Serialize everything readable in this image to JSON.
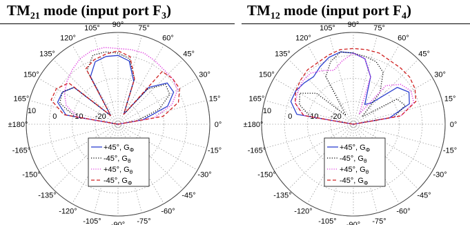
{
  "panels": [
    {
      "title_main": "TM",
      "title_sub": "21",
      "title_rest": " mode (input port F",
      "title_port": "3",
      "title_end": ")"
    },
    {
      "title_main": "TM",
      "title_sub": "12",
      "title_rest": " mode (input port F",
      "title_port": "4",
      "title_end": ")"
    }
  ],
  "chart_data": [
    {
      "type": "polar-line",
      "title": "TM21 mode (input port F3)",
      "angle_labels": [
        "105°",
        "90°",
        "75°",
        "120°",
        "60°",
        "135°",
        "45°",
        "150°",
        "30°",
        "165°",
        "15°",
        "±180°",
        "0°",
        "-165°",
        "-15°",
        "-150°",
        "-30°",
        "-135°",
        "-45°",
        "-120°",
        "-60°",
        "-105°",
        "-90°",
        "-75°"
      ],
      "radial_labels": [
        "10",
        "0",
        "-10",
        "-20"
      ],
      "r_range": [
        -30,
        10
      ],
      "legend": [
        "+45°, GΦ",
        "-45°, Gθ",
        "+45°, Gθ",
        "-45°, GΦ"
      ],
      "series": [
        {
          "name": "+45°, GΦ",
          "color": "#2b3fcf",
          "style": "solid",
          "theta": [
            0,
            10,
            20,
            30,
            40,
            50,
            60,
            70,
            80,
            90,
            100,
            110,
            120,
            130,
            140,
            150,
            160,
            170,
            180
          ],
          "r": [
            -30,
            -19,
            -7,
            -2,
            -2,
            -9,
            -25,
            -10,
            -2,
            0,
            0,
            -1,
            -6,
            -25,
            -5,
            -2,
            -2,
            -7,
            -30
          ]
        },
        {
          "name": "-45°, Gθ",
          "color": "#000000",
          "style": "dot-dash",
          "theta": [
            0,
            10,
            20,
            30,
            40,
            50,
            60,
            70,
            80,
            90,
            100,
            110,
            120,
            130,
            140,
            150,
            160,
            170,
            180
          ],
          "r": [
            -30,
            -22,
            -11,
            -4,
            -3,
            -10,
            -25,
            -9,
            -1,
            1,
            2,
            2,
            -3,
            -25,
            -5,
            -2,
            -3,
            -11,
            -30
          ]
        },
        {
          "name": "+45°, Gθ",
          "color": "#e040e0",
          "style": "dotted",
          "theta": [
            0,
            10,
            20,
            30,
            40,
            50,
            60,
            70,
            80,
            90,
            100,
            110,
            120,
            130,
            140,
            150,
            160,
            170,
            180
          ],
          "r": [
            -30,
            -14,
            -5,
            0,
            1,
            1,
            2,
            3,
            3,
            3,
            4,
            4,
            3,
            1,
            -1,
            -3,
            -6,
            -12,
            -30
          ]
        },
        {
          "name": "-45°, GΦ",
          "color": "#d02020",
          "style": "dashed",
          "theta": [
            0,
            10,
            20,
            30,
            40,
            50,
            60,
            70,
            80,
            90,
            100,
            110,
            120,
            130,
            140,
            150,
            160,
            170,
            180
          ],
          "r": [
            -30,
            -10,
            -2,
            1,
            1,
            0,
            -25,
            -9,
            0,
            2,
            1,
            0,
            -2,
            -25,
            -2,
            1,
            1,
            -6,
            -30
          ]
        }
      ]
    },
    {
      "type": "polar-line",
      "title": "TM12 mode (input port F4)",
      "angle_labels": [
        "105°",
        "90°",
        "75°",
        "120°",
        "60°",
        "135°",
        "45°",
        "150°",
        "30°",
        "165°",
        "15°",
        "±180°",
        "0°",
        "-165°",
        "-15°",
        "-150°",
        "-30°",
        "-135°",
        "-45°",
        "-120°",
        "-60°",
        "-105°",
        "-90°",
        "-75°"
      ],
      "radial_labels": [
        "10",
        "0",
        "-10",
        "-20"
      ],
      "r_range": [
        -30,
        10
      ],
      "legend": [
        "+45°, GΦ",
        "-45°, Gθ",
        "+45°, Gθ",
        "-45°, GΦ"
      ],
      "series": [
        {
          "name": "+45°, GΦ",
          "color": "#2b3fcf",
          "style": "solid",
          "theta": [
            0,
            10,
            20,
            30,
            40,
            50,
            60,
            70,
            80,
            90,
            100,
            110,
            120,
            130,
            140,
            150,
            160,
            170,
            180
          ],
          "r": [
            -30,
            -14,
            -4,
            -2,
            -5,
            -18,
            -20,
            -8,
            -1,
            1,
            2,
            1,
            -1,
            -3,
            -2,
            -1,
            -1,
            -5,
            -30
          ]
        },
        {
          "name": "-45°, Gθ",
          "color": "#000000",
          "style": "dot-dash",
          "theta": [
            0,
            10,
            20,
            30,
            40,
            50,
            60,
            70,
            80,
            90,
            100,
            110,
            120,
            130,
            140,
            150,
            160,
            170,
            180
          ],
          "r": [
            -30,
            -12,
            -6,
            -8,
            -25,
            -12,
            -4,
            -1,
            0,
            1,
            2,
            -1,
            -6,
            -25,
            -9,
            -3,
            -5,
            -11,
            -30
          ]
        },
        {
          "name": "+45°, Gθ",
          "color": "#e040e0",
          "style": "dotted",
          "theta": [
            0,
            10,
            20,
            30,
            40,
            50,
            60,
            70,
            80,
            90,
            100,
            110,
            120,
            130,
            140,
            150,
            160,
            170,
            180
          ],
          "r": [
            -30,
            -9,
            -2,
            -1,
            -3,
            -8,
            -25,
            -8,
            -1,
            1,
            -2,
            -5,
            -3,
            -1,
            -1,
            -2,
            -3,
            -8,
            -30
          ]
        },
        {
          "name": "-45°, GΦ",
          "color": "#d02020",
          "style": "dashed",
          "theta": [
            0,
            10,
            20,
            30,
            40,
            50,
            60,
            70,
            80,
            90,
            100,
            110,
            120,
            130,
            140,
            150,
            160,
            170,
            180
          ],
          "r": [
            -30,
            -9,
            -1,
            1,
            2,
            2,
            2,
            3,
            3,
            3,
            3,
            2,
            1,
            1,
            0,
            -1,
            -3,
            -8,
            -30
          ]
        }
      ]
    }
  ]
}
